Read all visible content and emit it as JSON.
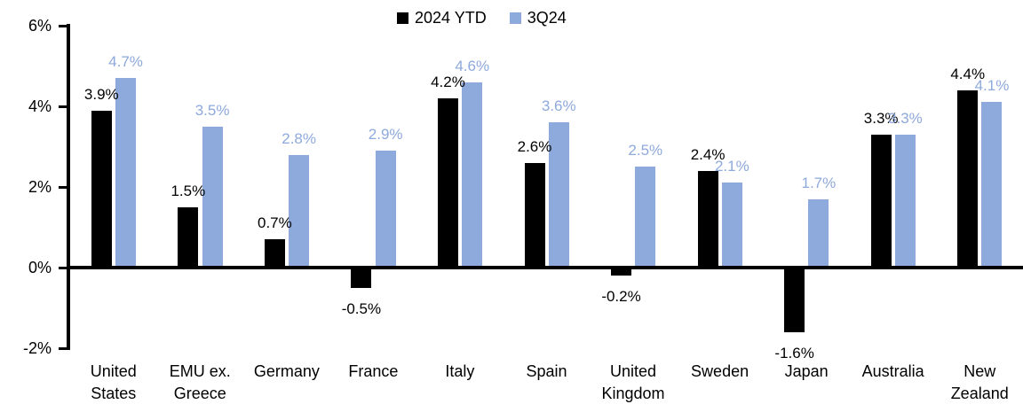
{
  "chart_data": {
    "type": "bar",
    "title": "",
    "xlabel": "",
    "ylabel": "",
    "categories": [
      "United\nStates",
      "EMU ex.\nGreece",
      "Germany",
      "France",
      "Italy",
      "Spain",
      "United\nKingdom",
      "Sweden",
      "Japan",
      "Australia",
      "New\nZealand"
    ],
    "series": [
      {
        "name": "2024 YTD",
        "color": "#000000",
        "values": [
          3.9,
          1.5,
          0.7,
          -0.5,
          4.2,
          2.6,
          -0.2,
          2.4,
          -1.6,
          3.3,
          4.4
        ],
        "labels": [
          "3.9%",
          "1.5%",
          "0.7%",
          "-0.5%",
          "4.2%",
          "2.6%",
          "-0.2%",
          "2.4%",
          "-1.6%",
          "3.3%",
          "4.4%"
        ]
      },
      {
        "name": "3Q24",
        "color": "#8EA9DB",
        "values": [
          4.7,
          3.5,
          2.8,
          2.9,
          4.6,
          3.6,
          2.5,
          2.1,
          1.7,
          3.3,
          4.1
        ],
        "labels": [
          "4.7%",
          "3.5%",
          "2.8%",
          "2.9%",
          "4.6%",
          "3.6%",
          "2.5%",
          "2.1%",
          "1.7%",
          "3.3%",
          "4.1%"
        ]
      }
    ],
    "y_axis": {
      "min": -2,
      "max": 6,
      "tick_interval": 2,
      "ticks": [
        6,
        4,
        2,
        0,
        -2
      ],
      "tick_labels": [
        "6%",
        "4%",
        "2%",
        "0%",
        "-2%"
      ]
    },
    "legend_position": "top-center",
    "grid": false,
    "data_labels": "outside-end"
  }
}
